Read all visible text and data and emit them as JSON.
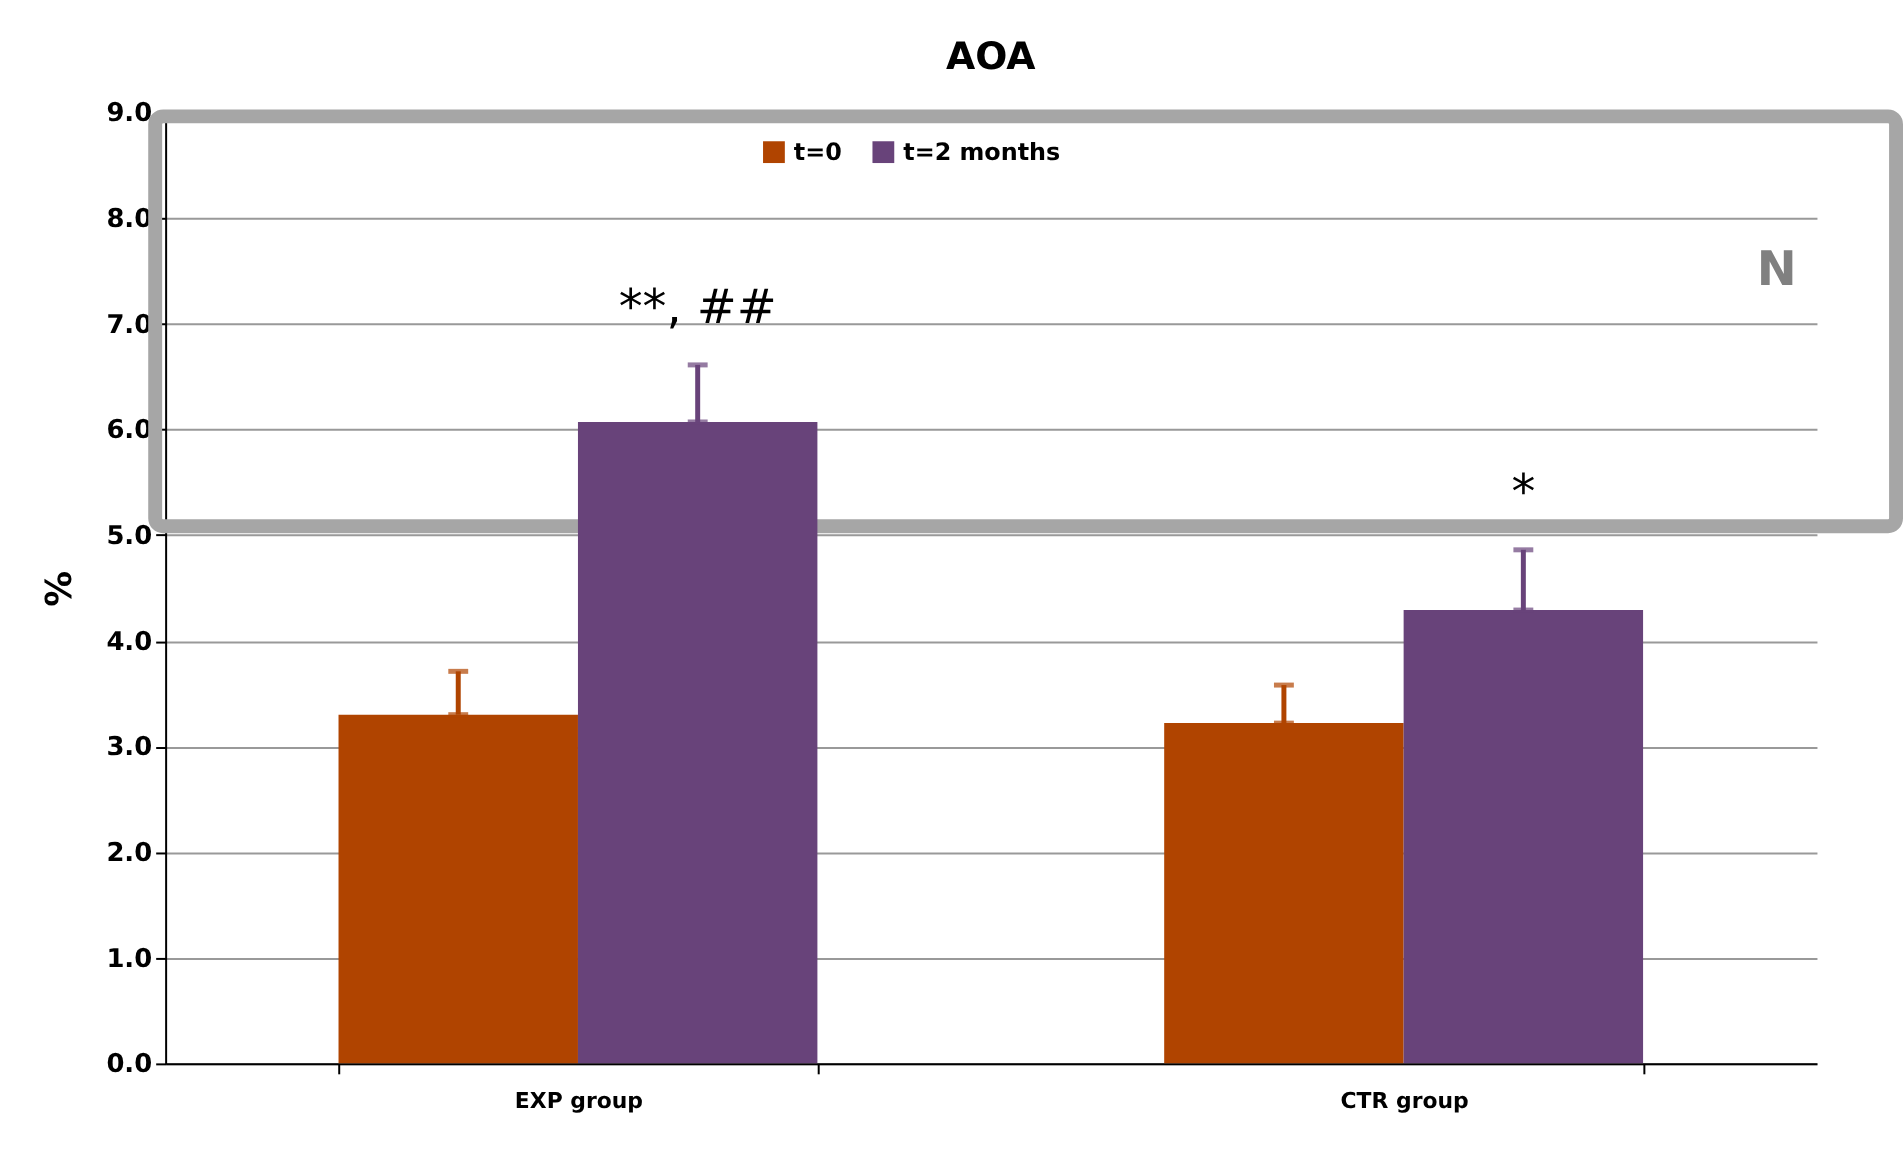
{
  "chart_data": {
    "type": "bar",
    "title": "AOA",
    "ylabel": "%",
    "categories": [
      "EXP group",
      "CTR group"
    ],
    "series": [
      {
        "name": "t=0",
        "color": "#b04400",
        "values": [
          3.3,
          3.22
        ],
        "errors": [
          0.41,
          0.36
        ]
      },
      {
        "name": "t=2 months",
        "color": "#68437a",
        "values": [
          6.07,
          4.29
        ],
        "errors": [
          0.54,
          0.57
        ]
      }
    ],
    "ylim": [
      0,
      9
    ],
    "yticks": [
      {
        "value": 0,
        "label": "0.0"
      },
      {
        "value": 1,
        "label": "1.0"
      },
      {
        "value": 2,
        "label": "2.0"
      },
      {
        "value": 3,
        "label": "3.0"
      },
      {
        "value": 4,
        "label": "4.0"
      },
      {
        "value": 5,
        "label": "5.0"
      },
      {
        "value": 6,
        "label": "6.0"
      },
      {
        "value": 7,
        "label": "7.0"
      },
      {
        "value": 8,
        "label": "8.0"
      },
      {
        "value": 9,
        "label": "9.0"
      }
    ],
    "annotations": [
      "**, ##",
      "*",
      "N"
    ],
    "grid": "y",
    "legend": "top"
  }
}
